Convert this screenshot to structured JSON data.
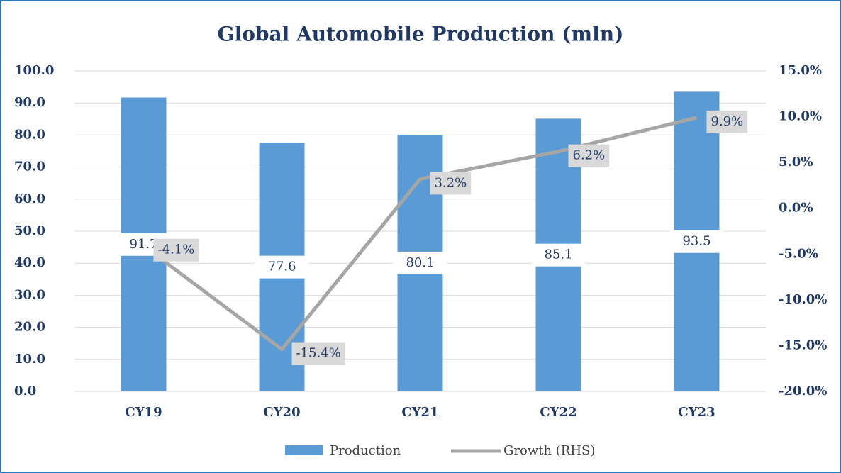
{
  "chart_data": {
    "type": "bar-line",
    "title": "Global Automobile Production (mln)",
    "categories": [
      "CY19",
      "CY20",
      "CY21",
      "CY22",
      "CY23"
    ],
    "series": [
      {
        "name": "Production",
        "type": "bar",
        "color": "#5b9bd5",
        "values": [
          91.7,
          77.6,
          80.1,
          85.1,
          93.5
        ]
      },
      {
        "name": "Growth (RHS)",
        "type": "line",
        "axis": "y2",
        "color": "#a6a6a6",
        "values": [
          -4.1,
          -15.4,
          3.2,
          6.2,
          9.9
        ],
        "value_labels": [
          "-4.1%",
          "-15.4%",
          "3.2%",
          "6.2%",
          "9.9%"
        ]
      }
    ],
    "ylim": [
      0,
      100
    ],
    "yticks": [
      {
        "value": 0,
        "label": "0.0"
      },
      {
        "value": 10,
        "label": "10.0"
      },
      {
        "value": 20,
        "label": "20.0"
      },
      {
        "value": 30,
        "label": "30.0"
      },
      {
        "value": 40,
        "label": "40.0"
      },
      {
        "value": 50,
        "label": "50.0"
      },
      {
        "value": 60,
        "label": "60.0"
      },
      {
        "value": 70,
        "label": "70.0"
      },
      {
        "value": 80,
        "label": "80.0"
      },
      {
        "value": 90,
        "label": "90.0"
      },
      {
        "value": 100,
        "label": "100.0"
      }
    ],
    "y2lim": [
      -20,
      15
    ],
    "y2ticks": [
      {
        "value": -20,
        "label": "-20.0%"
      },
      {
        "value": -15,
        "label": "-15.0%"
      },
      {
        "value": -10,
        "label": "-10.0%"
      },
      {
        "value": -5,
        "label": "-5.0%"
      },
      {
        "value": 0,
        "label": "0.0%"
      },
      {
        "value": 5,
        "label": "5.0%"
      },
      {
        "value": 10,
        "label": "10.0%"
      },
      {
        "value": 15,
        "label": "15.0%"
      }
    ],
    "grid": true,
    "legend": "bottom"
  }
}
